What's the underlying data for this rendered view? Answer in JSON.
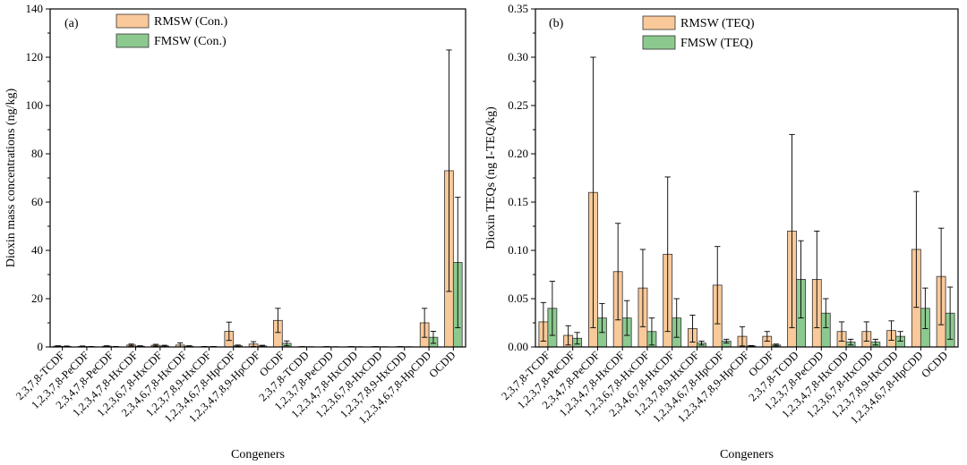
{
  "chart_data": [
    {
      "type": "bar",
      "panel_label": "(a)",
      "xlabel": "Congeners",
      "ylabel": "Dioxin mass concentrations (ng/kg)",
      "ylim": [
        0,
        140
      ],
      "yticks": [
        "0",
        "20",
        "40",
        "60",
        "80",
        "100",
        "120",
        "140"
      ],
      "legend_position": "top-left",
      "grid": false,
      "categories": [
        "2,3,7,8-TCDF",
        "1,2,3,7,8-PeCDF",
        "2,3,4,7,8-PeCDF",
        "1,2,3,4,7,8-HxCDF",
        "1,2,3,6,7,8-HxCDF",
        "2,3,4,6,7,8-HxCDF",
        "1,2,3,7,8,9-HxCDF",
        "1,2,3,4,6,7,8-HpCDF",
        "1,2,3,4,7,8,9-HpCDF",
        "OCDF",
        "2,3,7,8-TCDD",
        "1,2,3,7,8-PeCDD",
        "1,2,3,4,7,8-HxCDD",
        "1,2,3,6,7,8-HxCDD",
        "1,2,3,7,8,9-HxCDD",
        "1,2,3,4,6,7,8-HpCDD",
        "OCDD"
      ],
      "series": [
        {
          "name": "RMSW (Con.)",
          "color": "#f9c99a",
          "values": [
            0.3,
            0.2,
            0.3,
            0.8,
            0.7,
            0.8,
            0.1,
            6.5,
            1.2,
            11,
            0.1,
            0.1,
            0.1,
            0.1,
            0.1,
            10,
            73
          ],
          "errors": [
            0.2,
            0.2,
            0.2,
            0.4,
            0.4,
            0.9,
            0.1,
            3.8,
            1.0,
            5.0,
            0.05,
            0.05,
            0.05,
            0.05,
            0.05,
            6.0,
            50
          ]
        },
        {
          "name": "FMSW (Con.)",
          "color": "#8cc98f",
          "values": [
            0.2,
            0.1,
            0.1,
            0.3,
            0.4,
            0.3,
            0.1,
            0.5,
            0.4,
            1.5,
            0.05,
            0.05,
            0.05,
            0.05,
            0.05,
            4.0,
            35
          ],
          "errors": [
            0.2,
            0.1,
            0.1,
            0.2,
            0.3,
            0.2,
            0.1,
            0.3,
            0.3,
            1.0,
            0.03,
            0.03,
            0.03,
            0.03,
            0.03,
            2.5,
            27
          ]
        }
      ]
    },
    {
      "type": "bar",
      "panel_label": "(b)",
      "xlabel": "Congeners",
      "ylabel": "Dioxin TEQs (ng I-TEQ/kg)",
      "ylim": [
        0,
        0.35
      ],
      "yticks": [
        "0.00",
        "0.05",
        "0.10",
        "0.15",
        "0.20",
        "0.25",
        "0.30",
        "0.35"
      ],
      "legend_position": "top-center",
      "grid": false,
      "categories": [
        "2,3,7,8-TCDF",
        "1,2,3,7,8-PeCDF",
        "2,3,4,7,8-PeCDF",
        "1,2,3,4,7,8-HxCDF",
        "1,2,3,6,7,8-HxCDF",
        "2,3,4,6,7,8-HxCDF",
        "1,2,3,7,8,9-HxCDF",
        "1,2,3,4,6,7,8-HpCDF",
        "1,2,3,4,7,8,9-HpCDF",
        "OCDF",
        "2,3,7,8-TCDD",
        "1,2,3,7,8-PeCDD",
        "1,2,3,4,7,8-HxCDD",
        "1,2,3,6,7,8-HxCDD",
        "1,2,3,7,8,9-HxCDD",
        "1,2,3,4,6,7,8-HpCDD",
        "OCDD"
      ],
      "series": [
        {
          "name": "RMSW (TEQ)",
          "color": "#f9c99a",
          "values": [
            0.026,
            0.012,
            0.16,
            0.078,
            0.061,
            0.096,
            0.019,
            0.064,
            0.011,
            0.011,
            0.12,
            0.07,
            0.016,
            0.016,
            0.017,
            0.101,
            0.073
          ],
          "errors": [
            0.02,
            0.01,
            0.14,
            0.05,
            0.04,
            0.08,
            0.014,
            0.04,
            0.01,
            0.005,
            0.1,
            0.05,
            0.01,
            0.01,
            0.01,
            0.06,
            0.05
          ]
        },
        {
          "name": "FMSW (TEQ)",
          "color": "#8cc98f",
          "values": [
            0.04,
            0.009,
            0.03,
            0.03,
            0.016,
            0.03,
            0.004,
            0.006,
            0.001,
            0.002,
            0.07,
            0.035,
            0.005,
            0.005,
            0.011,
            0.04,
            0.035
          ],
          "errors": [
            0.028,
            0.006,
            0.015,
            0.018,
            0.014,
            0.02,
            0.002,
            0.002,
            0.0005,
            0.001,
            0.04,
            0.015,
            0.003,
            0.003,
            0.005,
            0.021,
            0.027
          ]
        }
      ]
    }
  ]
}
